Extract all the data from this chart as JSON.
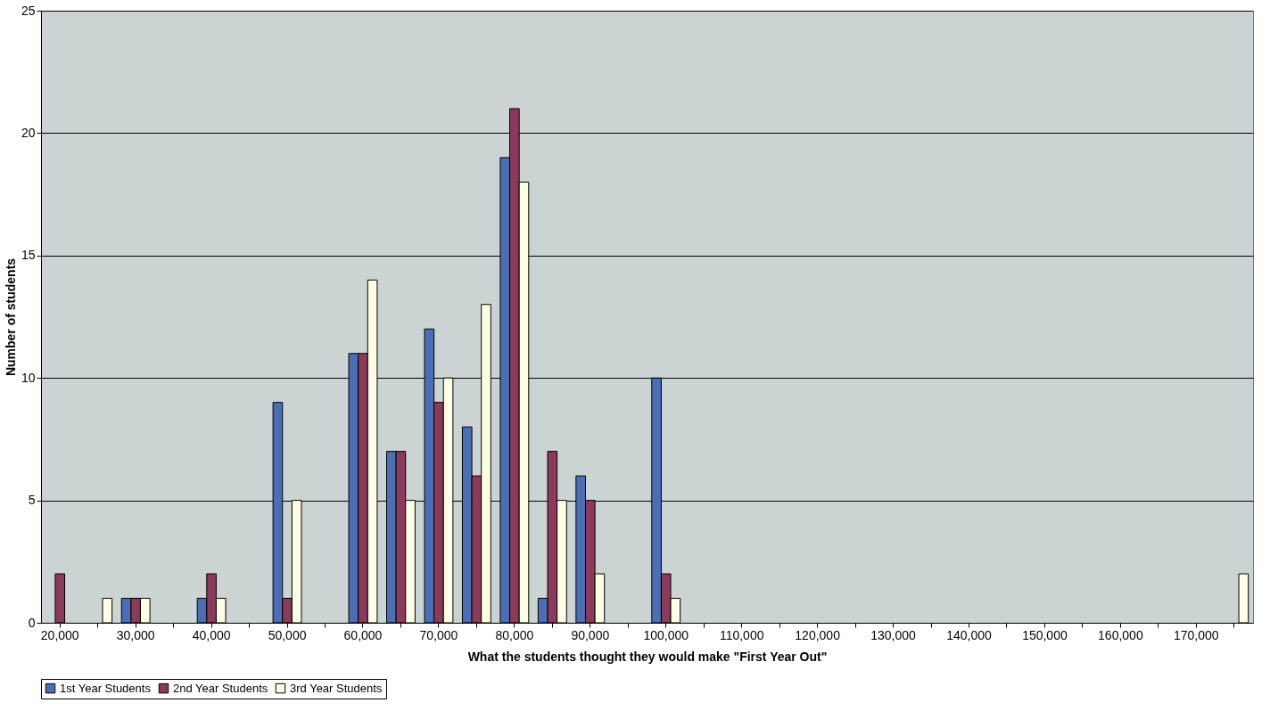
{
  "chart_data": {
    "type": "bar",
    "xlabel": "What the students thought they would make \"First Year Out\"",
    "ylabel": "Number of students",
    "categories": [
      "20,000",
      null,
      "30,000",
      null,
      "40,000",
      null,
      "50,000",
      null,
      "60,000",
      null,
      "70,000",
      null,
      "80,000",
      null,
      "90,000",
      null,
      "100,000",
      null,
      "110,000",
      null,
      "120,000",
      null,
      "130,000",
      null,
      "140,000",
      null,
      "150,000",
      null,
      "160,000",
      null,
      "170,000",
      null
    ],
    "series": [
      {
        "name": "1st Year Students",
        "color": "#4a6fb5",
        "values": [
          0,
          0,
          1,
          0,
          1,
          0,
          9,
          0,
          11,
          7,
          12,
          8,
          19,
          1,
          6,
          0,
          10,
          0,
          0,
          0,
          0,
          0,
          0,
          0,
          0,
          0,
          0,
          0,
          0,
          0,
          0,
          0
        ]
      },
      {
        "name": "2nd Year Students",
        "color": "#8b3a5a",
        "values": [
          2,
          0,
          1,
          0,
          2,
          0,
          1,
          0,
          11,
          7,
          9,
          6,
          21,
          7,
          5,
          0,
          2,
          0,
          0,
          0,
          0,
          0,
          0,
          0,
          0,
          0,
          0,
          0,
          0,
          0,
          0,
          0
        ]
      },
      {
        "name": "3rd Year Students",
        "color": "#ffffe6",
        "values": [
          0,
          1,
          1,
          0,
          1,
          0,
          5,
          0,
          14,
          5,
          10,
          13,
          18,
          5,
          2,
          0,
          1,
          0,
          0,
          0,
          0,
          0,
          0,
          0,
          0,
          0,
          0,
          0,
          0,
          0,
          0,
          2
        ]
      }
    ],
    "ylim": [
      0,
      25
    ],
    "yticks": [
      0,
      5,
      10,
      15,
      20,
      25
    ],
    "grid": "y",
    "legend": "bottom"
  }
}
